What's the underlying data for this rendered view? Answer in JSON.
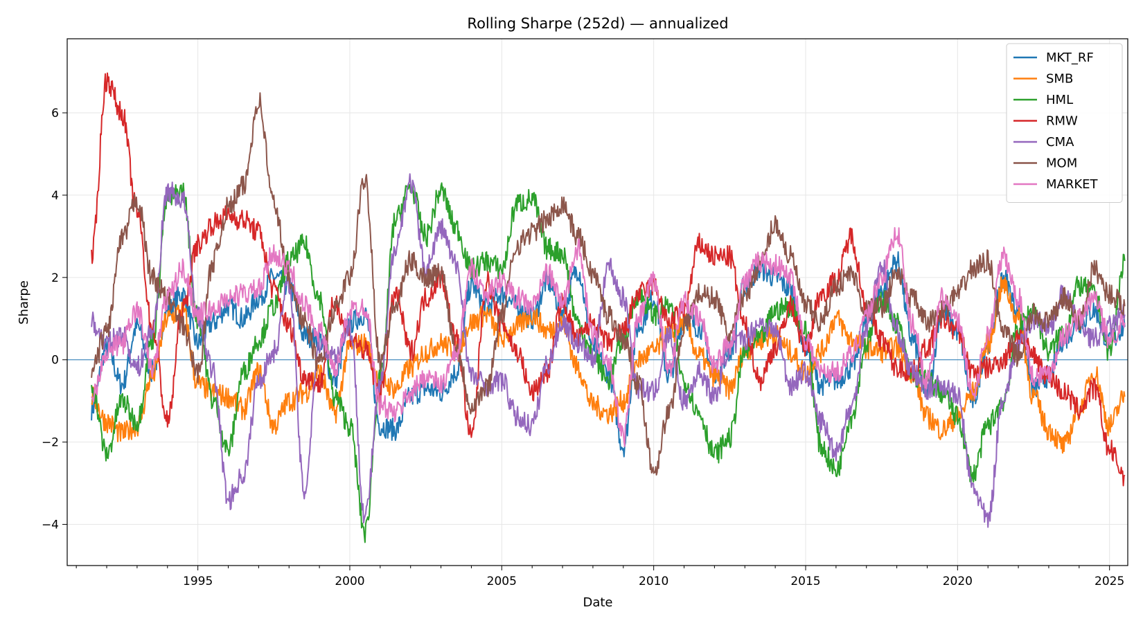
{
  "chart_data": {
    "type": "line",
    "title": "Rolling Sharpe (252d) — annualized",
    "xlabel": "Date",
    "ylabel": "Sharpe",
    "xlim": [
      1990.7,
      2025.6
    ],
    "ylim": [
      -5,
      7.8
    ],
    "x_ticks": [
      1995,
      2000,
      2005,
      2010,
      2015,
      2020,
      2025
    ],
    "x_tick_labels": [
      "1995",
      "2000",
      "2005",
      "2010",
      "2015",
      "2020",
      "2025"
    ],
    "y_ticks": [
      -4,
      -2,
      0,
      2,
      4,
      6
    ],
    "y_tick_labels": [
      "−4",
      "−2",
      "0",
      "2",
      "4",
      "6"
    ],
    "grid": true,
    "reference_line_y": 0,
    "legend_position": "upper-right",
    "x": [
      1991.5,
      1992.0,
      1992.5,
      1993.0,
      1993.5,
      1994.0,
      1994.5,
      1995.0,
      1995.5,
      1996.0,
      1996.5,
      1997.0,
      1997.5,
      1998.0,
      1998.5,
      1999.0,
      1999.5,
      2000.0,
      2000.5,
      2001.0,
      2001.5,
      2002.0,
      2002.5,
      2003.0,
      2003.5,
      2004.0,
      2004.5,
      2005.0,
      2005.5,
      2006.0,
      2006.5,
      2007.0,
      2007.5,
      2008.0,
      2008.5,
      2009.0,
      2009.5,
      2010.0,
      2010.5,
      2011.0,
      2011.5,
      2012.0,
      2012.5,
      2013.0,
      2013.5,
      2014.0,
      2014.5,
      2015.0,
      2015.5,
      2016.0,
      2016.5,
      2017.0,
      2017.5,
      2018.0,
      2018.5,
      2019.0,
      2019.5,
      2020.0,
      2020.5,
      2021.0,
      2021.5,
      2022.0,
      2022.5,
      2023.0,
      2023.5,
      2024.0,
      2024.5,
      2025.0,
      2025.5
    ],
    "series": [
      {
        "name": "MKT_RF",
        "color": "#1f77b4",
        "values": [
          -1.2,
          0.3,
          -0.6,
          0.8,
          -0.3,
          1.2,
          1.6,
          0.4,
          0.9,
          1.3,
          1.0,
          1.5,
          2.0,
          1.8,
          0.6,
          0.5,
          -0.5,
          0.9,
          1.1,
          -1.6,
          -1.7,
          -0.9,
          -0.7,
          -0.8,
          -0.3,
          1.8,
          1.3,
          1.6,
          1.3,
          1.0,
          1.9,
          1.2,
          2.2,
          0.3,
          -0.3,
          -2.1,
          0.8,
          1.5,
          -0.4,
          1.0,
          0.8,
          -0.3,
          0.2,
          1.8,
          2.2,
          2.0,
          1.7,
          0.3,
          -0.6,
          -0.5,
          -0.2,
          0.9,
          1.7,
          2.4,
          0.5,
          -0.8,
          1.2,
          0.7,
          -1.0,
          0.4,
          2.0,
          1.2,
          -0.7,
          -0.4,
          0.5,
          0.9,
          1.2,
          0.4,
          0.8
        ]
      },
      {
        "name": "SMB",
        "color": "#ff7f0e",
        "values": [
          -0.9,
          -1.5,
          -1.8,
          -1.6,
          -0.4,
          1.0,
          1.2,
          -0.6,
          -0.8,
          -0.9,
          -1.2,
          -0.3,
          -1.6,
          -1.0,
          -0.8,
          -0.3,
          -1.3,
          0.3,
          0.4,
          -0.5,
          -0.7,
          -0.2,
          0.2,
          0.4,
          0.2,
          0.9,
          1.1,
          0.5,
          0.8,
          1.1,
          0.7,
          0.9,
          -0.2,
          -1.1,
          -1.3,
          -1.0,
          0.0,
          0.2,
          0.6,
          0.9,
          0.1,
          -0.4,
          -0.7,
          0.2,
          0.5,
          0.6,
          0.2,
          -0.3,
          0.2,
          1.0,
          0.5,
          0.3,
          0.2,
          0.3,
          -0.3,
          -1.4,
          -1.7,
          -1.4,
          -0.8,
          0.4,
          1.8,
          1.0,
          -0.9,
          -1.7,
          -2.1,
          -1.2,
          -0.3,
          -1.6,
          -0.9
        ]
      },
      {
        "name": "HML",
        "color": "#2ca02c",
        "values": [
          -0.6,
          -2.3,
          -1.0,
          -1.5,
          0.5,
          3.9,
          4.1,
          1.0,
          -1.0,
          -2.2,
          -0.3,
          0.5,
          1.3,
          2.4,
          2.8,
          1.5,
          -0.9,
          -1.6,
          -4.2,
          -0.5,
          3.4,
          4.2,
          3.0,
          4.1,
          3.2,
          2.2,
          2.4,
          2.2,
          3.8,
          3.9,
          2.7,
          2.6,
          0.9,
          0.1,
          -0.5,
          0.5,
          1.6,
          1.1,
          1.3,
          -0.5,
          -1.3,
          -2.3,
          -1.9,
          0.2,
          0.5,
          1.2,
          1.3,
          0.7,
          -2.1,
          -2.7,
          -1.4,
          0.4,
          1.5,
          0.9,
          -0.4,
          -0.5,
          -0.8,
          -1.4,
          -2.8,
          -1.6,
          -1.0,
          0.8,
          1.2,
          0.2,
          0.7,
          1.8,
          1.6,
          0.2,
          2.4
        ]
      },
      {
        "name": "RMW",
        "color": "#d62728",
        "values": [
          2.5,
          6.8,
          6.0,
          3.6,
          0.8,
          -1.5,
          1.2,
          2.8,
          3.3,
          3.5,
          3.4,
          3.1,
          1.7,
          0.8,
          -0.4,
          -0.6,
          1.4,
          0.6,
          0.2,
          -0.8,
          1.6,
          0.2,
          1.5,
          2.0,
          0.5,
          -1.9,
          1.9,
          0.9,
          0.2,
          -0.8,
          -0.3,
          1.4,
          0.5,
          0.9,
          0.4,
          0.7,
          1.6,
          1.8,
          0.9,
          1.2,
          2.8,
          2.5,
          2.5,
          0.8,
          -0.5,
          0.3,
          1.3,
          0.3,
          1.6,
          1.9,
          3.0,
          1.3,
          0.5,
          -0.2,
          -0.3,
          0.3,
          1.0,
          0.7,
          -0.3,
          -0.2,
          0.0,
          0.6,
          0.1,
          -0.4,
          -0.8,
          -1.2,
          -0.7,
          -2.2,
          -2.8
        ]
      },
      {
        "name": "CMA",
        "color": "#9467bd",
        "values": [
          0.9,
          0.4,
          0.6,
          -0.2,
          0.7,
          4.1,
          3.9,
          1.1,
          -0.3,
          -3.4,
          -2.8,
          -0.5,
          0.2,
          1.9,
          -3.2,
          0.4,
          0.1,
          0.8,
          -3.8,
          -0.6,
          2.8,
          4.3,
          2.2,
          3.2,
          2.3,
          -0.4,
          -0.6,
          -0.5,
          -1.4,
          -1.6,
          -0.1,
          0.9,
          0.4,
          0.0,
          2.3,
          1.5,
          -0.7,
          -0.8,
          0.6,
          -1.0,
          -0.3,
          -0.9,
          0.3,
          0.5,
          0.9,
          0.7,
          -0.6,
          -0.3,
          -1.5,
          -2.2,
          -1.2,
          0.8,
          2.3,
          0.7,
          -0.3,
          -0.7,
          -0.6,
          -0.9,
          -3.1,
          -3.9,
          -0.9,
          0.3,
          1.0,
          0.8,
          1.6,
          0.9,
          0.5,
          0.8,
          1.1
        ]
      },
      {
        "name": "MOM",
        "color": "#8c564b",
        "values": [
          -0.3,
          0.7,
          2.9,
          3.9,
          2.0,
          1.5,
          0.8,
          -0.3,
          2.4,
          3.7,
          4.2,
          6.3,
          3.8,
          2.0,
          0.9,
          -0.1,
          1.2,
          2.0,
          4.4,
          0.0,
          1.3,
          2.4,
          2.0,
          2.1,
          0.3,
          -1.1,
          -0.7,
          1.1,
          2.8,
          3.1,
          3.4,
          3.8,
          3.0,
          2.1,
          1.1,
          0.5,
          -0.6,
          -2.7,
          -1.3,
          0.8,
          1.6,
          1.5,
          0.6,
          1.6,
          2.3,
          3.3,
          2.5,
          1.3,
          0.9,
          1.8,
          2.1,
          1.2,
          1.3,
          2.1,
          1.5,
          0.9,
          1.2,
          1.6,
          2.2,
          2.4,
          0.7,
          0.1,
          1.1,
          0.9,
          1.5,
          0.9,
          2.2,
          1.6,
          1.3
        ]
      },
      {
        "name": "MARKET",
        "color": "#e377c2",
        "values": [
          -0.9,
          0.2,
          0.4,
          1.2,
          -0.2,
          1.5,
          2.2,
          1.1,
          1.2,
          1.5,
          1.6,
          1.7,
          2.6,
          2.2,
          1.3,
          0.7,
          -0.3,
          1.2,
          1.3,
          -1.1,
          -1.3,
          -0.8,
          -0.4,
          -0.6,
          0.1,
          2.2,
          1.6,
          1.9,
          1.5,
          1.3,
          2.1,
          1.4,
          2.7,
          0.6,
          0.0,
          -1.9,
          1.0,
          1.9,
          -0.2,
          1.4,
          1.0,
          -0.1,
          0.4,
          1.9,
          2.4,
          2.3,
          2.0,
          0.5,
          -0.3,
          -0.3,
          0.1,
          1.1,
          2.0,
          3.1,
          0.9,
          -0.5,
          1.5,
          0.9,
          -0.8,
          0.6,
          2.5,
          1.5,
          -0.4,
          -0.3,
          0.6,
          1.0,
          1.5,
          0.5,
          0.9
        ]
      }
    ]
  }
}
